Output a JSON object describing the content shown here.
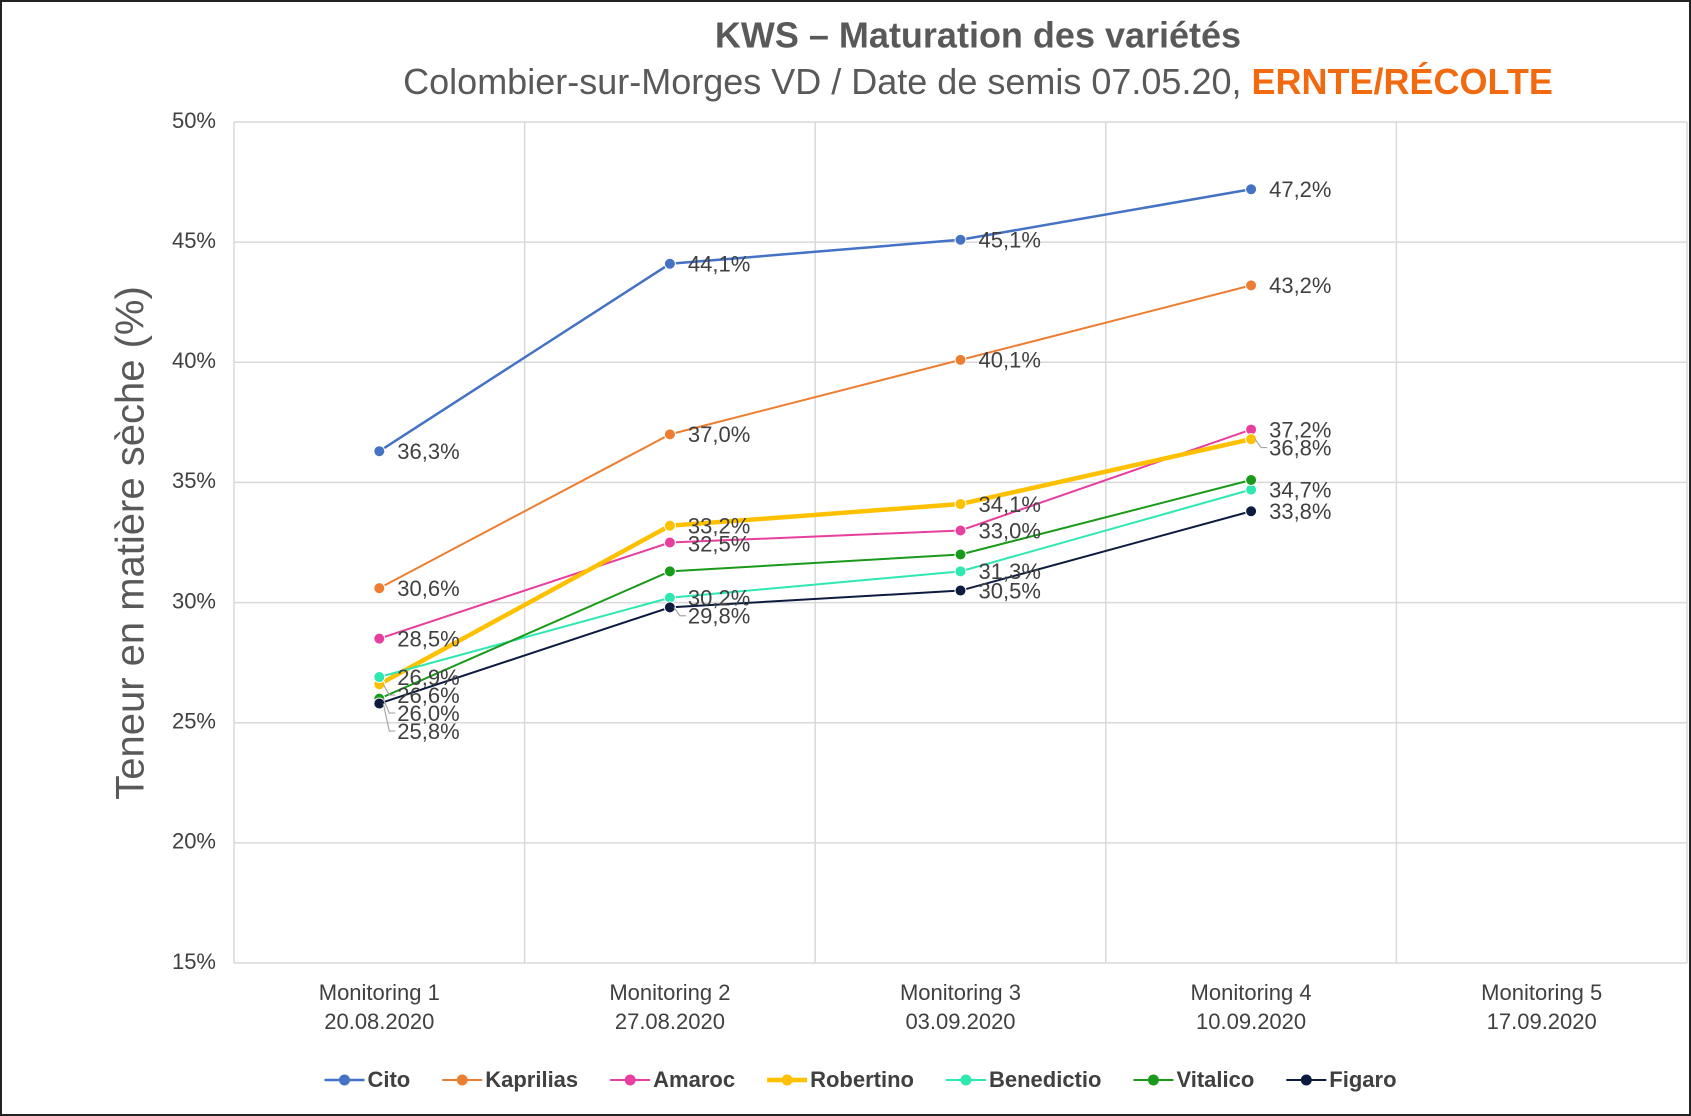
{
  "chart_data": {
    "type": "line",
    "title": "KWS – Maturation des variétés",
    "subtitle": "Colombier-sur-Morges VD / Date de semis 07.05.20,",
    "subtitle_highlight": "ERNTE/RÉCOLTE",
    "y_label": "Teneur en matière sèche (%)",
    "categories": [
      [
        "Monitoring 1",
        "20.08.2020"
      ],
      [
        "Monitoring 2",
        "27.08.2020"
      ],
      [
        "Monitoring 3",
        "03.09.2020"
      ],
      [
        "Monitoring 4",
        "10.09.2020"
      ],
      [
        "Monitoring 5",
        "17.09.2020"
      ]
    ],
    "ylim": [
      15,
      50
    ],
    "yticks": [
      {
        "value": 15,
        "label": "15%"
      },
      {
        "value": 20,
        "label": "20%"
      },
      {
        "value": 25,
        "label": "25%"
      },
      {
        "value": 30,
        "label": "30%"
      },
      {
        "value": 35,
        "label": "35%"
      },
      {
        "value": 40,
        "label": "40%"
      },
      {
        "value": 45,
        "label": "45%"
      },
      {
        "value": 50,
        "label": "50%"
      }
    ],
    "grid": true,
    "legend": "bottom",
    "series": [
      {
        "name": "Cito",
        "color": "#4472c4",
        "line_width": 2.5,
        "values": [
          36.3,
          44.1,
          45.1,
          47.2,
          null
        ],
        "value_labels": [
          "36,3%",
          "44,1%",
          "45,1%",
          "47,2%",
          null
        ]
      },
      {
        "name": "Kaprilias",
        "color": "#ed7d31",
        "line_width": 2,
        "values": [
          30.6,
          37.0,
          40.1,
          43.2,
          null
        ],
        "value_labels": [
          "30,6%",
          "37,0%",
          "40,1%",
          "43,2%",
          null
        ]
      },
      {
        "name": "Amaroc",
        "color": "#e83e9e",
        "line_width": 2,
        "values": [
          28.5,
          32.5,
          33.0,
          37.2,
          null
        ],
        "value_labels": [
          "28,5%",
          "32,5%",
          "33,0%",
          "37,2%",
          null
        ]
      },
      {
        "name": "Robertino",
        "color": "#ffc000",
        "line_width": 4.5,
        "values": [
          26.6,
          33.2,
          34.1,
          36.8,
          null
        ],
        "value_labels": [
          "26,6%",
          "33,2%",
          "34,1%",
          "36,8%",
          null
        ]
      },
      {
        "name": "Benedictio",
        "color": "#2de8b0",
        "line_width": 2,
        "values": [
          26.9,
          30.2,
          31.3,
          34.7,
          null
        ],
        "value_labels": [
          "26,9%",
          "30,2%",
          "31,3%",
          "34,7%",
          null
        ]
      },
      {
        "name": "Vitalico",
        "color": "#1a9a1a",
        "line_width": 2,
        "values": [
          26.0,
          31.3,
          32.0,
          35.1,
          null
        ],
        "value_labels": [
          "26,0%",
          null,
          null,
          null,
          null
        ]
      },
      {
        "name": "Figaro",
        "color": "#0d1b3e",
        "line_width": 2,
        "values": [
          25.8,
          29.8,
          30.5,
          33.8,
          null
        ],
        "value_labels": [
          "25,8%",
          "29,8%",
          "30,5%",
          "33,8%",
          null
        ]
      }
    ]
  }
}
